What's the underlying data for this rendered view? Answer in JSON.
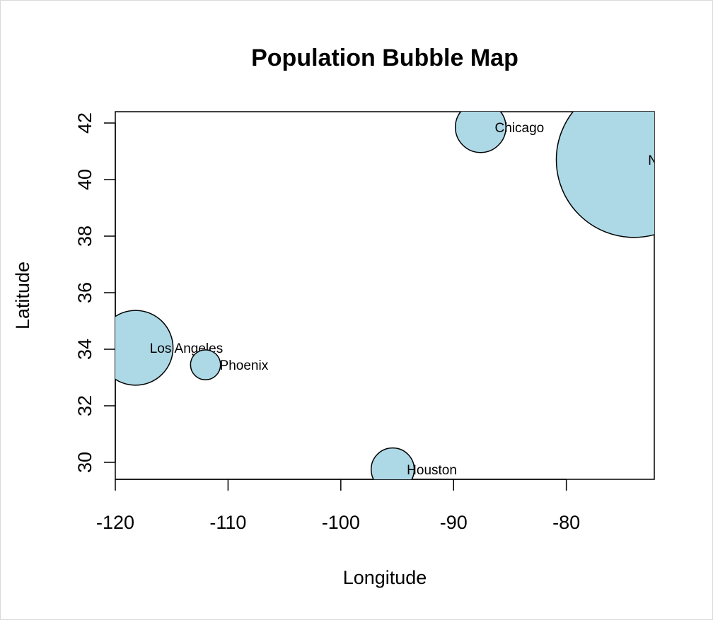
{
  "chart_data": {
    "type": "scatter",
    "title": "Population Bubble Map",
    "xlabel": "Longitude",
    "ylabel": "Latitude",
    "xlim": [
      -120,
      -72.2
    ],
    "ylim": [
      29.4,
      42.4
    ],
    "x_ticks": [
      -120,
      -110,
      -100,
      -90,
      -80
    ],
    "y_ticks": [
      30,
      32,
      34,
      36,
      38,
      40,
      42
    ],
    "x_tick_labels": [
      "-120",
      "-110",
      "-100",
      "-90",
      "-80"
    ],
    "y_tick_labels": [
      "30",
      "32",
      "34",
      "36",
      "38",
      "40",
      "42"
    ],
    "bubble_fill": "#add8e6",
    "bubble_stroke": "#000000",
    "points": [
      {
        "label": "New York",
        "x": -74.0,
        "y": 40.7,
        "size": 8.3
      },
      {
        "label": "Los Angeles",
        "x": -118.2,
        "y": 34.05,
        "size": 4.0
      },
      {
        "label": "Chicago",
        "x": -87.6,
        "y": 41.85,
        "size": 2.7
      },
      {
        "label": "Houston",
        "x": -95.4,
        "y": 29.75,
        "size": 2.3
      },
      {
        "label": "Phoenix",
        "x": -112.0,
        "y": 33.45,
        "size": 1.6
      }
    ],
    "grid": false,
    "legend": "none"
  }
}
